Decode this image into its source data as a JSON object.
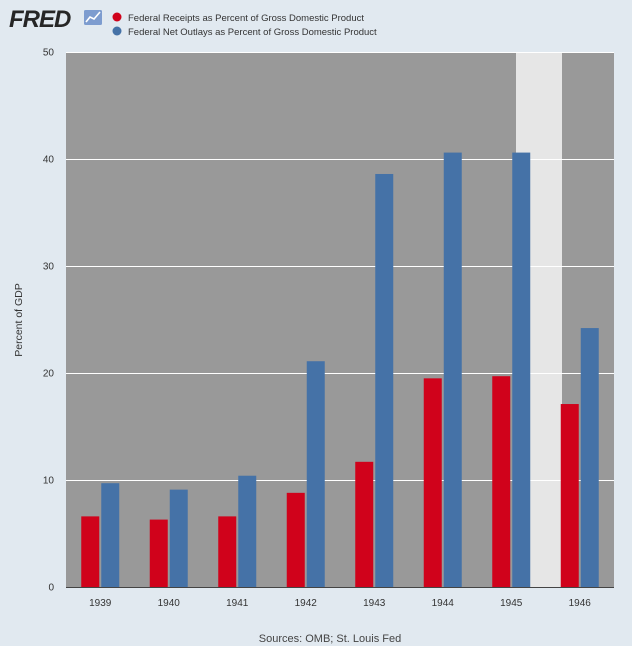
{
  "logo": {
    "text": "FRED"
  },
  "colors": {
    "background": "#e1e9f0",
    "plot_area": "#999999",
    "recession": "#e6e6e6",
    "gridline": "#ffffff",
    "receipts": "#d0021b",
    "outlays": "#4572a7"
  },
  "chart_data": {
    "type": "bar",
    "title": "",
    "xlabel": "",
    "ylabel": "Percent of GDP",
    "categories": [
      "1939",
      "1940",
      "1941",
      "1942",
      "1943",
      "1944",
      "1945",
      "1946"
    ],
    "series": [
      {
        "name": "Federal Receipts as Percent of Gross Domestic Product",
        "color": "#d0021b",
        "values": [
          6.6,
          6.3,
          6.6,
          8.8,
          11.7,
          19.5,
          19.7,
          17.1
        ]
      },
      {
        "name": "Federal Net Outlays as Percent of Gross Domestic Product",
        "color": "#4572a7",
        "values": [
          9.7,
          9.1,
          10.4,
          21.1,
          38.6,
          40.6,
          40.6,
          24.2
        ]
      }
    ],
    "ylim": [
      0,
      50
    ],
    "yticks": [
      "0",
      "10",
      "20",
      "30",
      "40",
      "50"
    ],
    "grid": true,
    "legend_position": "top-left",
    "recession_shading": [
      "1945"
    ]
  },
  "source": "Sources: OMB; St. Louis Fed"
}
